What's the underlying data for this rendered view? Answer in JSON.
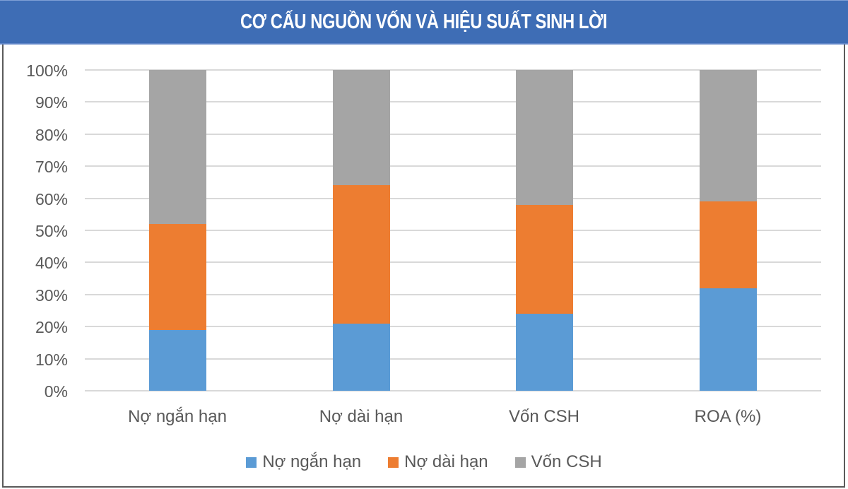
{
  "header": {
    "title": "CƠ CẤU NGUỒN VỐN VÀ HIỆU SUẤT SINH LỜI"
  },
  "colors": {
    "header_bg": "#3e6db5",
    "series_blue": "#5b9bd5",
    "series_orange": "#ed7d31",
    "series_gray": "#a5a5a5",
    "gridline": "#d9d9d9",
    "text": "#595959"
  },
  "axis": {
    "y_ticks": [
      "100%",
      "90%",
      "80%",
      "70%",
      "60%",
      "50%",
      "40%",
      "30%",
      "20%",
      "10%",
      "0%"
    ],
    "x_labels": [
      "Nợ ngắn hạn",
      "Nợ dài hạn",
      "Vốn CSH",
      "ROA (%)"
    ]
  },
  "legend": [
    {
      "label": "Nợ ngắn hạn",
      "color": "#5b9bd5"
    },
    {
      "label": "Nợ dài hạn",
      "color": "#ed7d31"
    },
    {
      "label": "Vốn CSH",
      "color": "#a5a5a5"
    }
  ],
  "chart_data": {
    "type": "bar",
    "stacked": true,
    "percent_stacked": true,
    "title": "CƠ CẤU NGUỒN VỐN VÀ HIỆU SUẤT SINH LỜI",
    "categories": [
      "Nợ ngắn hạn",
      "Nợ dài hạn",
      "Vốn CSH",
      "ROA (%)"
    ],
    "series": [
      {
        "name": "Nợ ngắn hạn",
        "color": "#5b9bd5",
        "values": [
          19,
          21,
          24,
          32
        ]
      },
      {
        "name": "Nợ dài hạn",
        "color": "#ed7d31",
        "values": [
          33,
          43,
          34,
          27
        ]
      },
      {
        "name": "Vốn CSH",
        "color": "#a5a5a5",
        "values": [
          48,
          36,
          42,
          41
        ]
      }
    ],
    "xlabel": "",
    "ylabel": "",
    "ylim": [
      0,
      100
    ],
    "y_ticks": [
      "0%",
      "10%",
      "20%",
      "30%",
      "40%",
      "50%",
      "60%",
      "70%",
      "80%",
      "90%",
      "100%"
    ],
    "grid": true,
    "legend_position": "bottom"
  }
}
